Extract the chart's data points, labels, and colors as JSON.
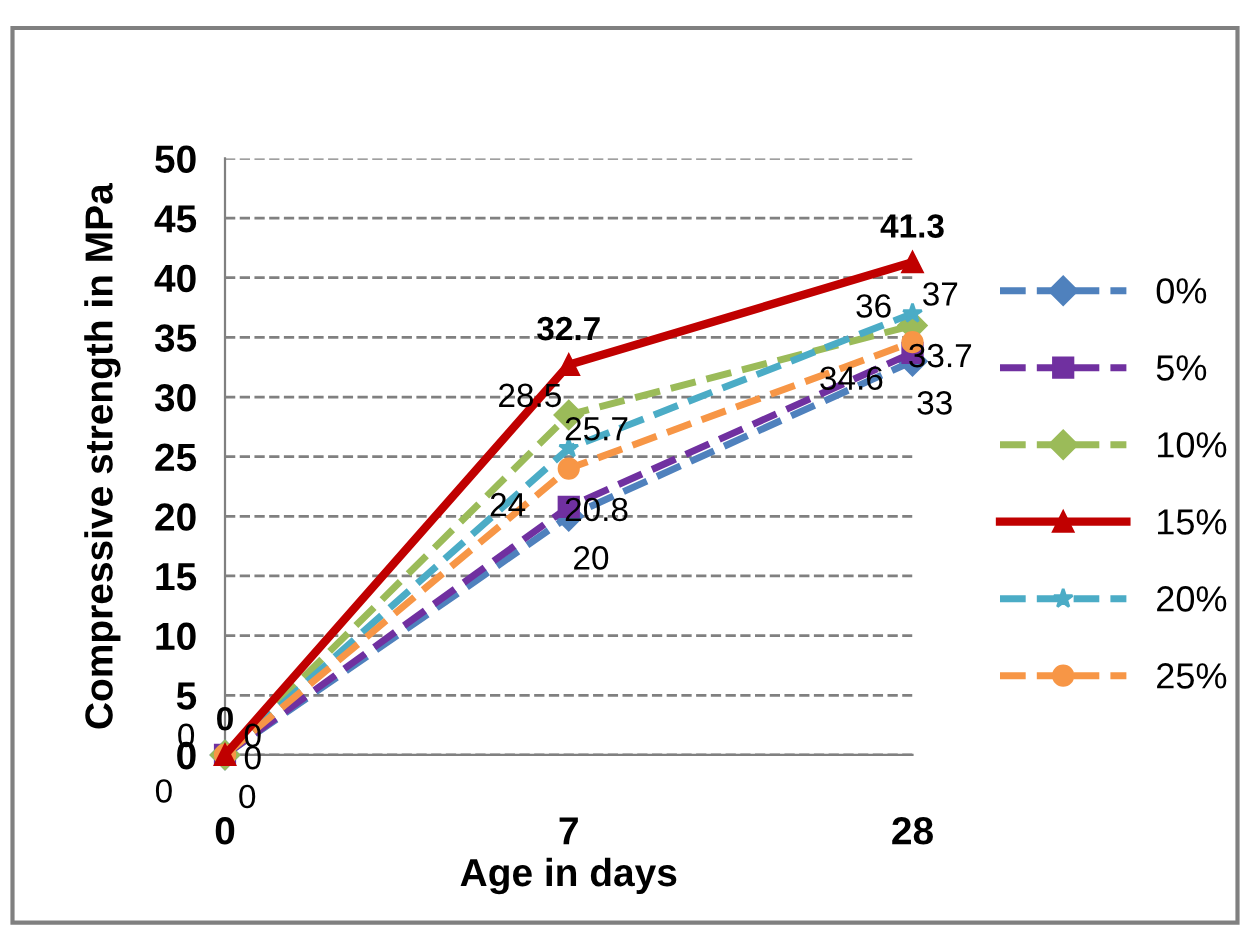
{
  "chart_data": {
    "type": "line",
    "xlabel": "Age in days",
    "ylabel": "Compressive strength in MPa",
    "categories": [
      "0",
      "7",
      "28"
    ],
    "series": [
      {
        "name": "0%",
        "color": "#4f81bd",
        "values": [
          0,
          20,
          33
        ],
        "marker": "diamond",
        "line_style": "dashed"
      },
      {
        "name": "5%",
        "color": "#7030a0",
        "values": [
          0,
          20.8,
          33.7
        ],
        "marker": "square",
        "line_style": "dashed"
      },
      {
        "name": "10%",
        "color": "#9bbb59",
        "values": [
          0,
          28.5,
          36
        ],
        "marker": "diamond",
        "line_style": "dashed"
      },
      {
        "name": "15%",
        "color": "#c00000",
        "values": [
          0,
          32.7,
          41.3
        ],
        "marker": "triangle",
        "line_style": "solid"
      },
      {
        "name": "20%",
        "color": "#4bacc6",
        "values": [
          0,
          25.7,
          37
        ],
        "marker": "star",
        "line_style": "dashed"
      },
      {
        "name": "25%",
        "color": "#f79646",
        "values": [
          0,
          24,
          34.6
        ],
        "marker": "circle",
        "line_style": "dashed"
      }
    ],
    "ylim": [
      0,
      50
    ],
    "yticks": [
      0,
      5,
      10,
      15,
      20,
      25,
      30,
      35,
      40,
      45,
      50
    ],
    "grid": "y",
    "legend": "right",
    "data_labels": true
  }
}
